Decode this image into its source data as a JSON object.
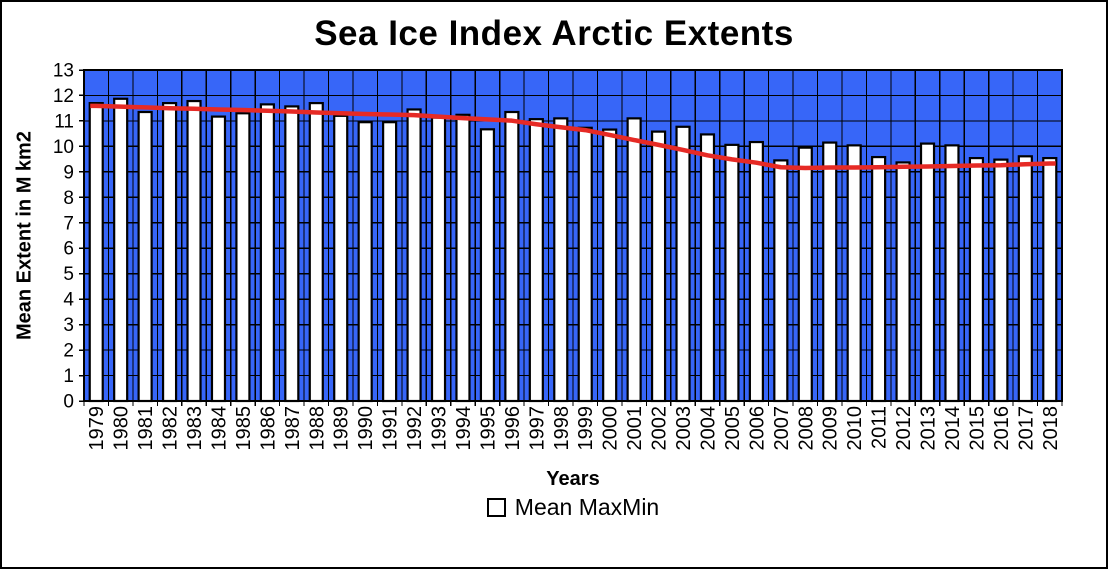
{
  "figure": {
    "background": "#ffffff",
    "border_color": "#000000"
  },
  "chart_data": {
    "type": "bar",
    "title": "Sea Ice Index Arctic Extents",
    "xlabel": "Years",
    "ylabel": "Mean Extent in M km2",
    "ylim": [
      0,
      13
    ],
    "y_ticks": [
      0,
      1,
      2,
      3,
      4,
      5,
      6,
      7,
      8,
      9,
      10,
      11,
      12,
      13
    ],
    "categories": [
      "1979",
      "1980",
      "1981",
      "1982",
      "1983",
      "1984",
      "1985",
      "1986",
      "1987",
      "1988",
      "1989",
      "1990",
      "1991",
      "1992",
      "1993",
      "1994",
      "1995",
      "1996",
      "1997",
      "1998",
      "1999",
      "2000",
      "2001",
      "2002",
      "2003",
      "2004",
      "2005",
      "2006",
      "2007",
      "2008",
      "2009",
      "2010",
      "2011",
      "2012",
      "2013",
      "2014",
      "2015",
      "2016",
      "2017",
      "2018"
    ],
    "series": [
      {
        "name": "Mean MaxMin",
        "type": "bar",
        "fill": "#ffffff",
        "stroke": "#000000",
        "values": [
          11.7,
          11.87,
          11.35,
          11.7,
          11.78,
          11.17,
          11.3,
          11.65,
          11.57,
          11.7,
          11.2,
          10.95,
          10.95,
          11.45,
          11.13,
          11.24,
          10.67,
          11.35,
          11.07,
          11.1,
          10.73,
          10.66,
          11.1,
          10.58,
          10.77,
          10.47,
          10.06,
          10.17,
          9.45,
          9.95,
          10.15,
          10.04,
          9.58,
          9.37,
          10.11,
          10.04,
          9.54,
          9.48,
          9.61,
          9.54
        ]
      },
      {
        "name": "trend",
        "type": "line",
        "color": "#e62a25",
        "values": [
          11.59,
          11.56,
          11.53,
          11.5,
          11.48,
          11.45,
          11.43,
          11.4,
          11.37,
          11.33,
          11.3,
          11.27,
          11.25,
          11.23,
          11.17,
          11.11,
          11.06,
          11.01,
          10.87,
          10.75,
          10.64,
          10.45,
          10.25,
          10.06,
          9.86,
          9.65,
          9.49,
          9.36,
          9.18,
          9.15,
          9.17,
          9.17,
          9.18,
          9.2,
          9.21,
          9.23,
          9.25,
          9.26,
          9.3,
          9.33
        ]
      }
    ],
    "plot_bg_color": "#3766f8",
    "grid": {
      "horizontal": true,
      "vertical": true,
      "color": "#000000"
    },
    "legend": {
      "label": "Mean MaxMin",
      "position": "bottom",
      "marker_fill": "#ffffff",
      "marker_stroke": "#000000"
    }
  }
}
